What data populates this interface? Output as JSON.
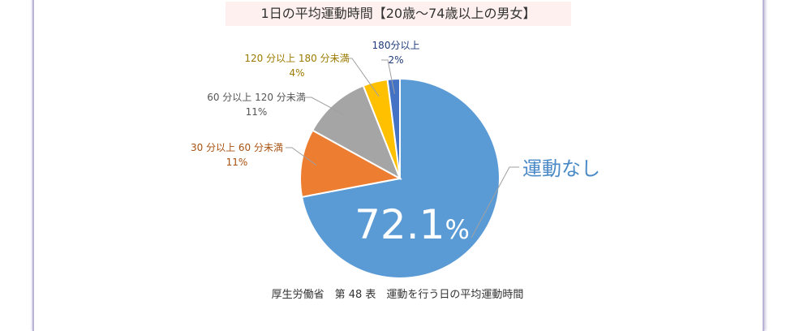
{
  "header": {
    "title": "1日の平均運動時間【20歳～74歳以上の男女】"
  },
  "chart_data": {
    "type": "pie",
    "title": "1日の平均運動時間【20歳～74歳以上の男女】",
    "start_angle_deg": 0,
    "direction": "clockwise",
    "slices": [
      {
        "label": "運動なし",
        "value": 72.1,
        "value_label": "72.1%",
        "color": "#5b9bd5",
        "label_color": "#4a8ac6"
      },
      {
        "label": "30 分以上 60 分未満",
        "value": 11,
        "value_label": "11%",
        "color": "#ed7d31",
        "label_color": "#a85212"
      },
      {
        "label": "60 分以上 120 分未満",
        "value": 11,
        "value_label": "11%",
        "color": "#a5a5a5",
        "label_color": "#555555"
      },
      {
        "label": "120 分以上 180 分未満",
        "value": 4,
        "value_label": "4%",
        "color": "#ffc000",
        "label_color": "#9c7a00"
      },
      {
        "label": "180分以上",
        "value": 2,
        "value_label": "2%",
        "color": "#4472c4",
        "label_color": "#1e3a78"
      }
    ]
  },
  "source": {
    "caption": "厚生労働省　第 48 表　運動を行う日の平均運動時間"
  }
}
